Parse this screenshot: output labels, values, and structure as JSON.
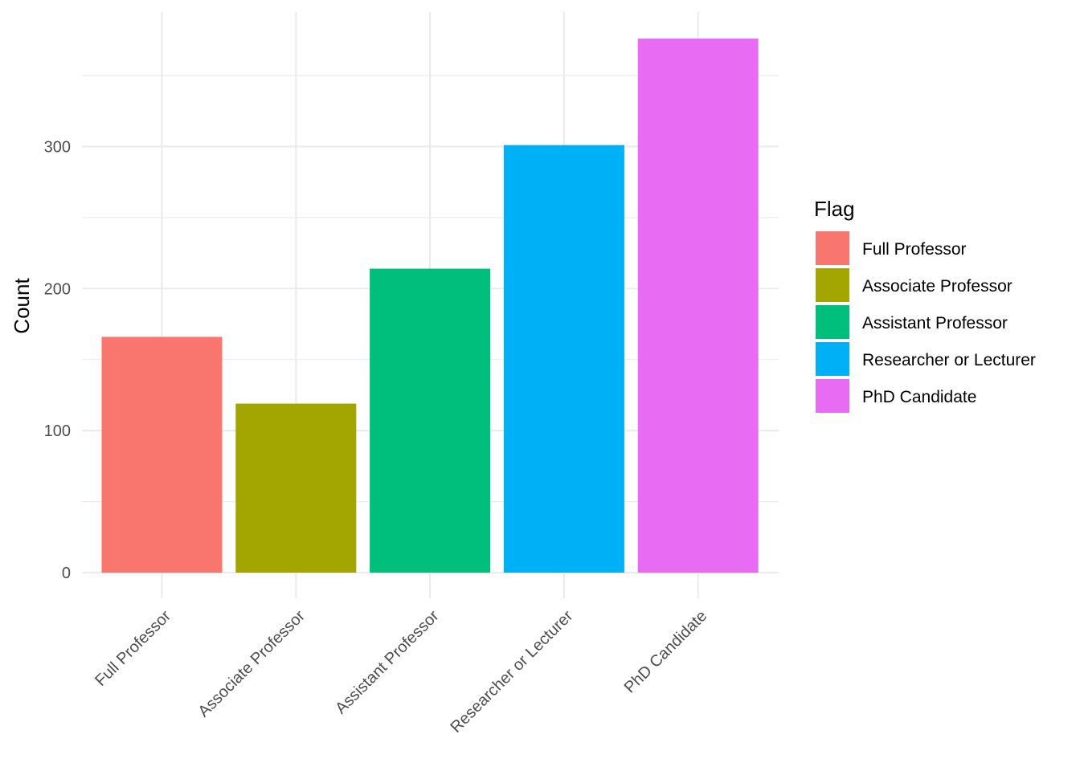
{
  "chart_data": {
    "type": "bar",
    "title": "",
    "xlabel": "",
    "ylabel": "Count",
    "categories": [
      "Full Professor",
      "Associate Professor",
      "Assistant Professor",
      "Researcher or Lecturer",
      "PhD Candidate"
    ],
    "values": [
      166,
      119,
      214,
      301,
      376
    ],
    "colors": [
      "#F8766D",
      "#A3A500",
      "#00BF7D",
      "#00B0F6",
      "#E76BF3"
    ],
    "ylim": [
      0,
      395
    ],
    "yticks": [
      0,
      100,
      200,
      300
    ],
    "grid": true,
    "legend": {
      "title": "Flag",
      "position": "right",
      "items": [
        "Full Professor",
        "Associate Professor",
        "Assistant Professor",
        "Researcher or Lecturer",
        "PhD Candidate"
      ]
    }
  }
}
